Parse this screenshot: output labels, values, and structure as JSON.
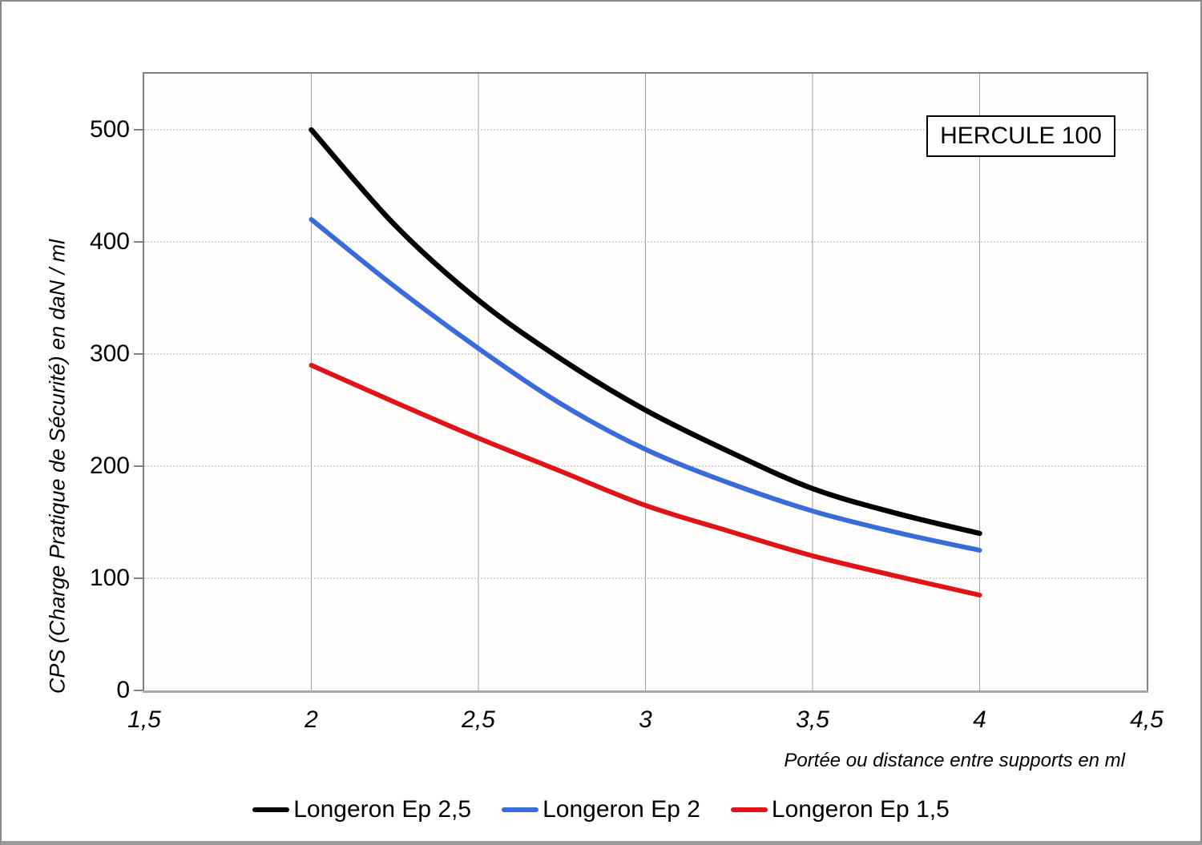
{
  "title_box": "HERCULE 100",
  "chart_data": {
    "type": "line",
    "title": "HERCULE 100",
    "xlabel": "Portée ou distance entre supports en ml",
    "ylabel": "CPS (Charge Pratique de Sécurité) en daN / ml",
    "xlim": [
      1.5,
      4.5
    ],
    "ylim": [
      0,
      550
    ],
    "grid": {
      "vertical_at": [
        2,
        2.5,
        3,
        3.5,
        4
      ],
      "horizontal_at": [
        100,
        200,
        300,
        400,
        500
      ],
      "vertical_style": "solid",
      "horizontal_style": "dotted"
    },
    "x_ticks": {
      "values": [
        1.5,
        2,
        2.5,
        3,
        3.5,
        4,
        4.5
      ],
      "labels": [
        "1,5",
        "2",
        "2,5",
        "3",
        "3,5",
        "4",
        "4,5"
      ]
    },
    "y_ticks": {
      "values": [
        0,
        100,
        200,
        300,
        400,
        500
      ],
      "labels": [
        "0",
        "100",
        "200",
        "300",
        "400",
        "500"
      ]
    },
    "x": [
      2,
      2.25,
      2.5,
      2.75,
      3,
      3.25,
      3.5,
      3.75,
      4
    ],
    "series": [
      {
        "name": "Longeron Ep 2,5",
        "color": "#000000",
        "stroke_width": 6.5,
        "values": [
          500,
          415,
          348,
          295,
          250,
          213,
          180,
          158,
          140
        ]
      },
      {
        "name": "Longeron Ep 2",
        "color": "#3A6CD9",
        "stroke_width": 6,
        "values": [
          420,
          360,
          305,
          255,
          215,
          185,
          160,
          141,
          125
        ]
      },
      {
        "name": "Longeron Ep 1,5",
        "color": "#E01418",
        "stroke_width": 6,
        "values": [
          290,
          257,
          225,
          195,
          165,
          142,
          120,
          102,
          85
        ]
      }
    ],
    "legend_position": "bottom"
  }
}
